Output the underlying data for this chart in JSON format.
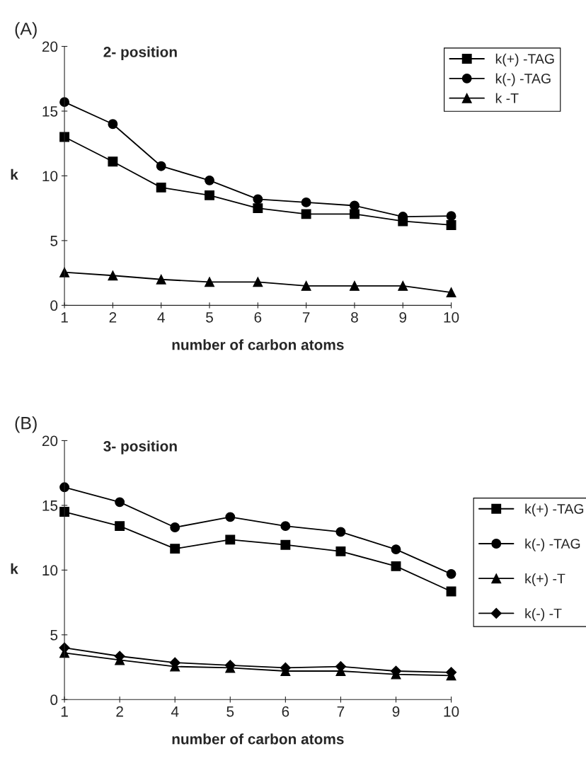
{
  "chart_data": [
    {
      "type": "line",
      "title": "2- position",
      "xlabel": "number of carbon atoms",
      "ylabel": "k",
      "annotations": [
        "(A)"
      ],
      "categories": [
        "1",
        "2",
        "4",
        "5",
        "6",
        "7",
        "8",
        "9",
        "10"
      ],
      "ylim": [
        0,
        20
      ],
      "yticks": [
        0,
        5,
        10,
        15,
        20
      ],
      "grid": false,
      "legend": "top right",
      "line_style": "solid",
      "series": [
        {
          "name": "k(+) -TAG",
          "color": "#000000",
          "marker": "square",
          "values": [
            13.0,
            11.1,
            9.1,
            8.5,
            7.5,
            7.05,
            7.05,
            6.5,
            6.2
          ]
        },
        {
          "name": "k(-) -TAG",
          "color": "#000000",
          "marker": "circle",
          "values": [
            15.7,
            14.0,
            10.75,
            9.65,
            8.2,
            7.95,
            7.7,
            6.85,
            6.9
          ]
        },
        {
          "name": "k -T",
          "color": "#000000",
          "marker": "triangle",
          "values": [
            2.55,
            2.3,
            2.0,
            1.8,
            1.8,
            1.5,
            1.5,
            1.5,
            1.0
          ]
        }
      ]
    },
    {
      "type": "line",
      "title": "3- position",
      "xlabel": "number of carbon atoms",
      "ylabel": "k",
      "annotations": [
        "(B)"
      ],
      "categories": [
        "1",
        "2",
        "4",
        "5",
        "6",
        "7",
        "9",
        "10"
      ],
      "ylim": [
        0,
        20
      ],
      "yticks": [
        0,
        5,
        10,
        15,
        20
      ],
      "grid": false,
      "legend": "right",
      "line_style": "solid",
      "series": [
        {
          "name": "k(+) -TAG",
          "color": "#000000",
          "marker": "square",
          "values": [
            14.5,
            13.4,
            11.65,
            12.35,
            11.95,
            11.45,
            10.3,
            8.35
          ]
        },
        {
          "name": "k(-) -TAG",
          "color": "#000000",
          "marker": "circle",
          "values": [
            16.4,
            15.25,
            13.3,
            14.1,
            13.4,
            12.95,
            11.6,
            9.7
          ]
        },
        {
          "name": "k(+) -T",
          "color": "#000000",
          "marker": "triangle",
          "values": [
            3.6,
            3.05,
            2.55,
            2.45,
            2.2,
            2.2,
            1.95,
            1.85
          ]
        },
        {
          "name": "k(-) -T",
          "color": "#000000",
          "marker": "diamond",
          "values": [
            4.0,
            3.35,
            2.85,
            2.65,
            2.45,
            2.55,
            2.2,
            2.1
          ]
        }
      ]
    }
  ]
}
